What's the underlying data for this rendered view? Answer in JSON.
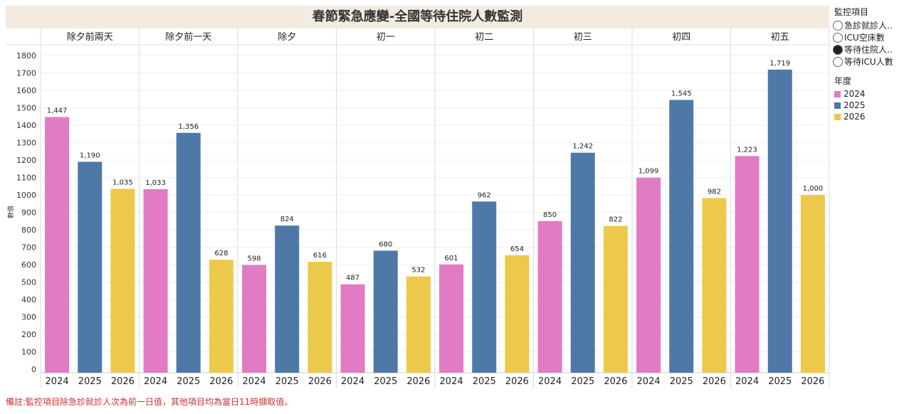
{
  "title": "春節緊急應變-全國等待住院人數監測",
  "legend": {
    "filter_title": "監控項目",
    "filter_options": [
      {
        "label": "急診就診人..",
        "selected": false
      },
      {
        "label": "ICU空床數",
        "selected": false
      },
      {
        "label": "等待住院人..",
        "selected": true
      },
      {
        "label": "等待ICU人數",
        "selected": false
      }
    ],
    "color_title": "年度",
    "color_items": [
      {
        "label": "2024",
        "color": "#e07bc4"
      },
      {
        "label": "2025",
        "color": "#4e79a7"
      },
      {
        "label": "2026",
        "color": "#ecc94b"
      }
    ]
  },
  "note": "備註:監控項目除急診就診人次為前一日值，其他項目均為當日11時擷取值。",
  "chart_data": {
    "type": "bar",
    "title": "春節緊急應變-全國等待住院人數監測",
    "ylabel": "數值",
    "ylim": [
      0,
      1800
    ],
    "yticks": [
      0,
      100,
      200,
      300,
      400,
      500,
      600,
      700,
      800,
      900,
      1000,
      1100,
      1200,
      1300,
      1400,
      1500,
      1600,
      1700,
      1800
    ],
    "grid": true,
    "legend_position": "right",
    "categories": [
      "除夕前兩天",
      "除夕前一天",
      "除夕",
      "初一",
      "初二",
      "初三",
      "初四",
      "初五"
    ],
    "subcategories": [
      "2024",
      "2025",
      "2026"
    ],
    "series": [
      {
        "name": "2024",
        "color": "#e07bc4",
        "values": [
          1447,
          1033,
          598,
          487,
          601,
          850,
          1099,
          1223
        ],
        "labels": [
          "1,447",
          "1,033",
          "598",
          "487",
          "601",
          "850",
          "1,099",
          "1,223"
        ]
      },
      {
        "name": "2025",
        "color": "#4e79a7",
        "values": [
          1190,
          1356,
          824,
          680,
          962,
          1242,
          1545,
          1719
        ],
        "labels": [
          "1,190",
          "1,356",
          "824",
          "680",
          "962",
          "1,242",
          "1,545",
          "1,719"
        ]
      },
      {
        "name": "2026",
        "color": "#ecc94b",
        "values": [
          1035,
          628,
          616,
          532,
          654,
          822,
          982,
          1000
        ],
        "labels": [
          "1,035",
          "628",
          "616",
          "532",
          "654",
          "822",
          "982",
          "1,000"
        ]
      }
    ]
  }
}
